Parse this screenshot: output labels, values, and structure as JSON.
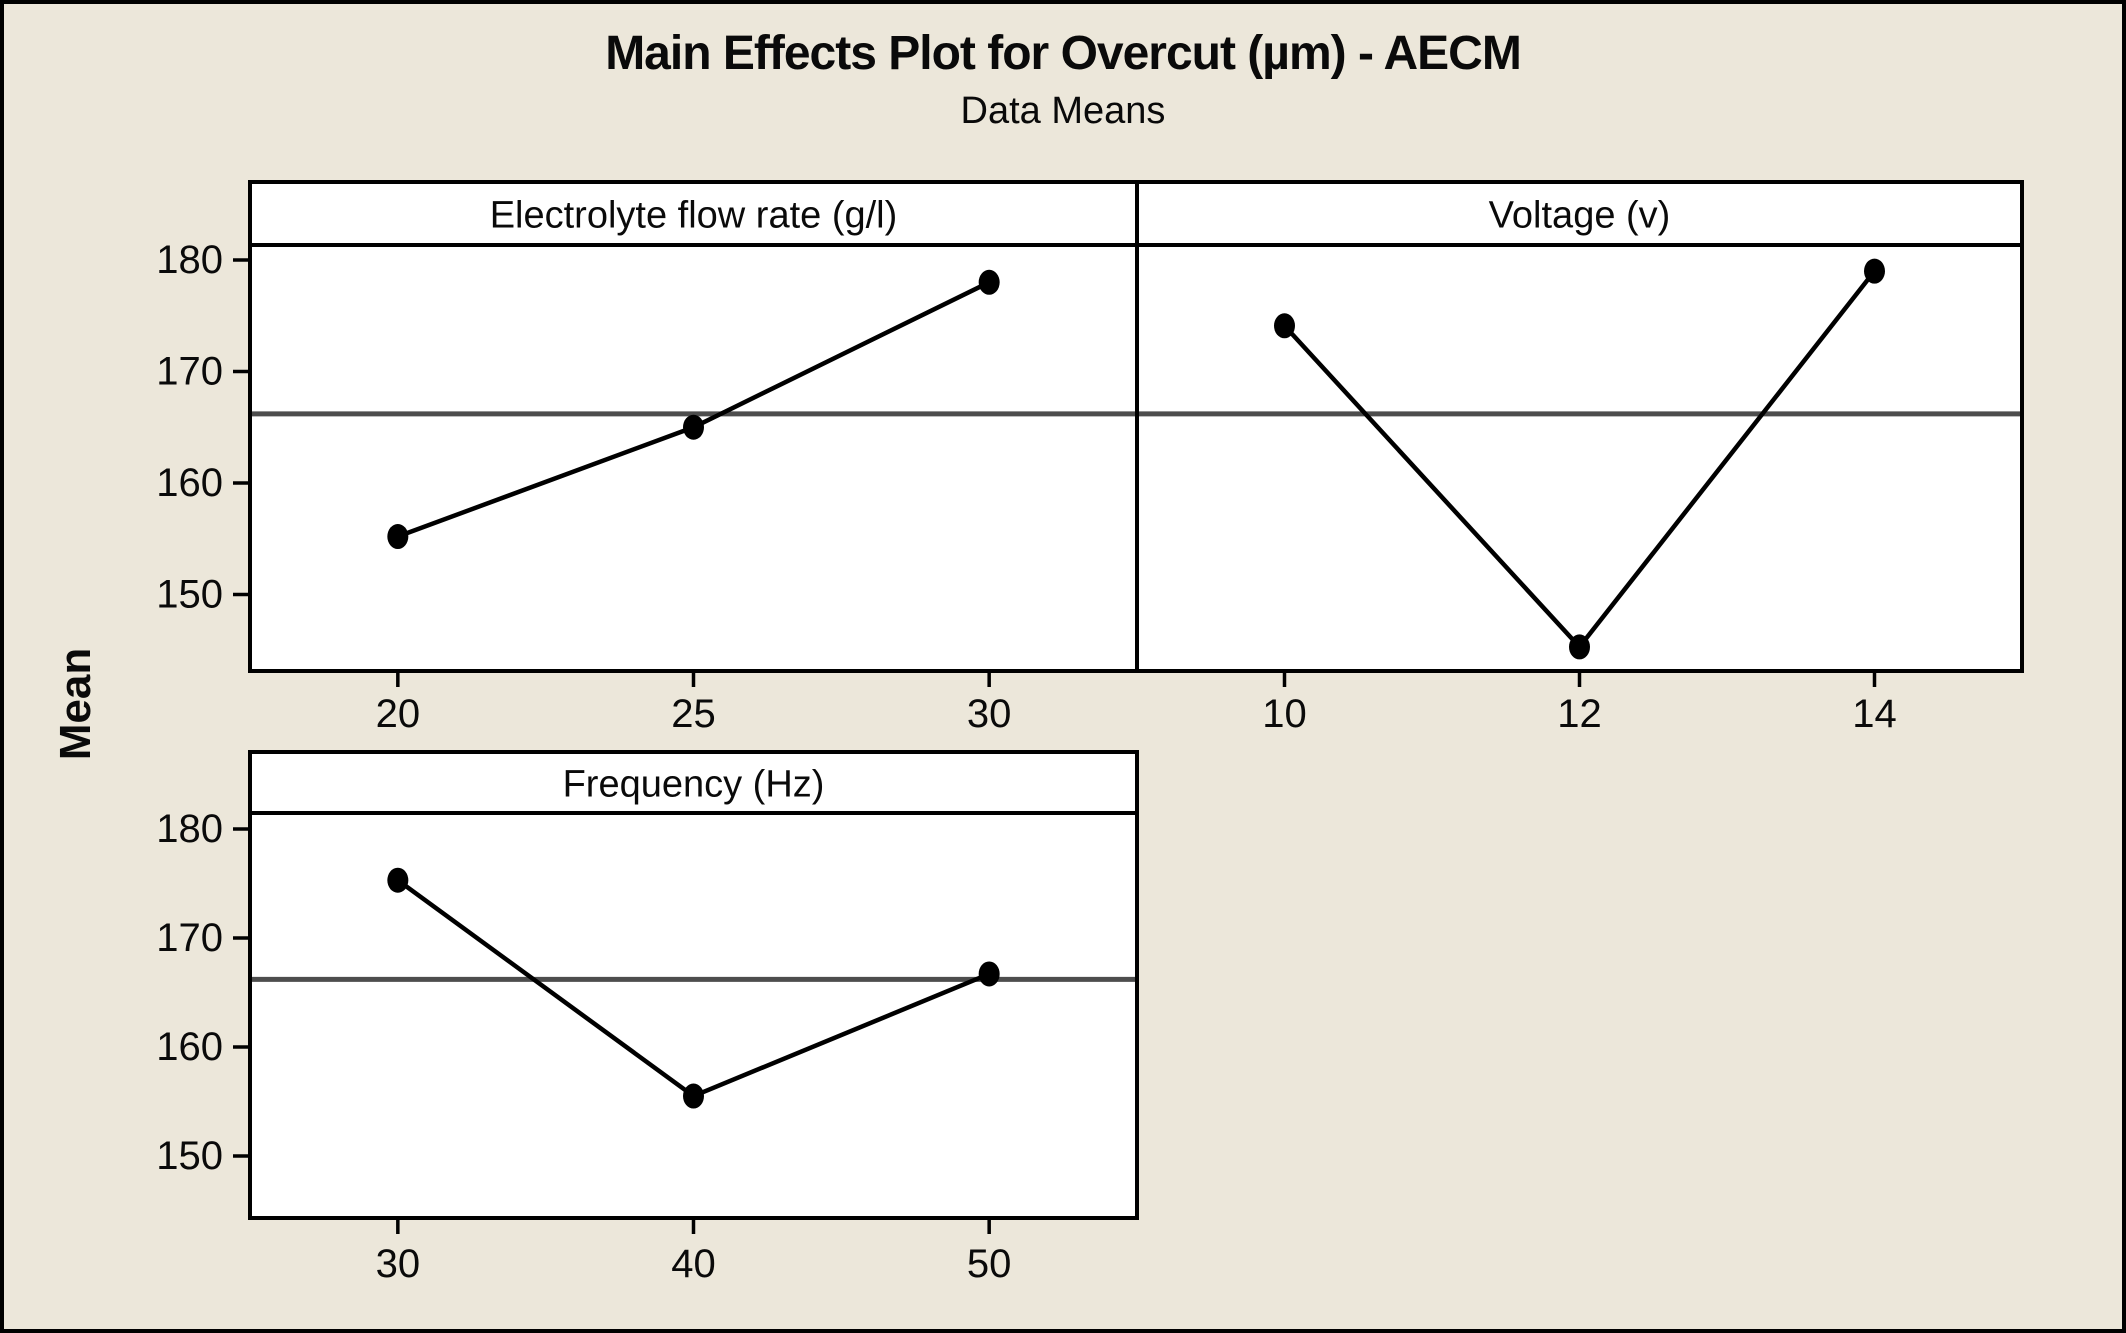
{
  "page": {
    "background_color": "#ECE7DA",
    "panel_color": "#FFFFFF",
    "frame_color": "#000000",
    "mean_line_color": "#4D4D4D"
  },
  "chart_data": {
    "type": "line",
    "title": "Main Effects Plot for Overcut (µm) - AECM",
    "subtitle": "Data Means",
    "ylabel": "Mean",
    "grand_mean": 166.2,
    "yticks": [
      150,
      160,
      170,
      180
    ],
    "ylim": [
      143.1,
      181.5
    ],
    "grid": false,
    "legend_position": "none",
    "marker": "filled-circle",
    "panels": [
      {
        "title": "Electrolyte flow rate (g/l)",
        "categories": [
          "20",
          "25",
          "30"
        ],
        "values": [
          155.2,
          165.0,
          178.0
        ]
      },
      {
        "title": "Voltage (v)",
        "categories": [
          "10",
          "12",
          "14"
        ],
        "values": [
          174.1,
          145.3,
          179.0
        ]
      },
      {
        "title": "Frequency (Hz)",
        "categories": [
          "30",
          "40",
          "50"
        ],
        "values": [
          175.3,
          155.5,
          166.7
        ]
      }
    ]
  }
}
